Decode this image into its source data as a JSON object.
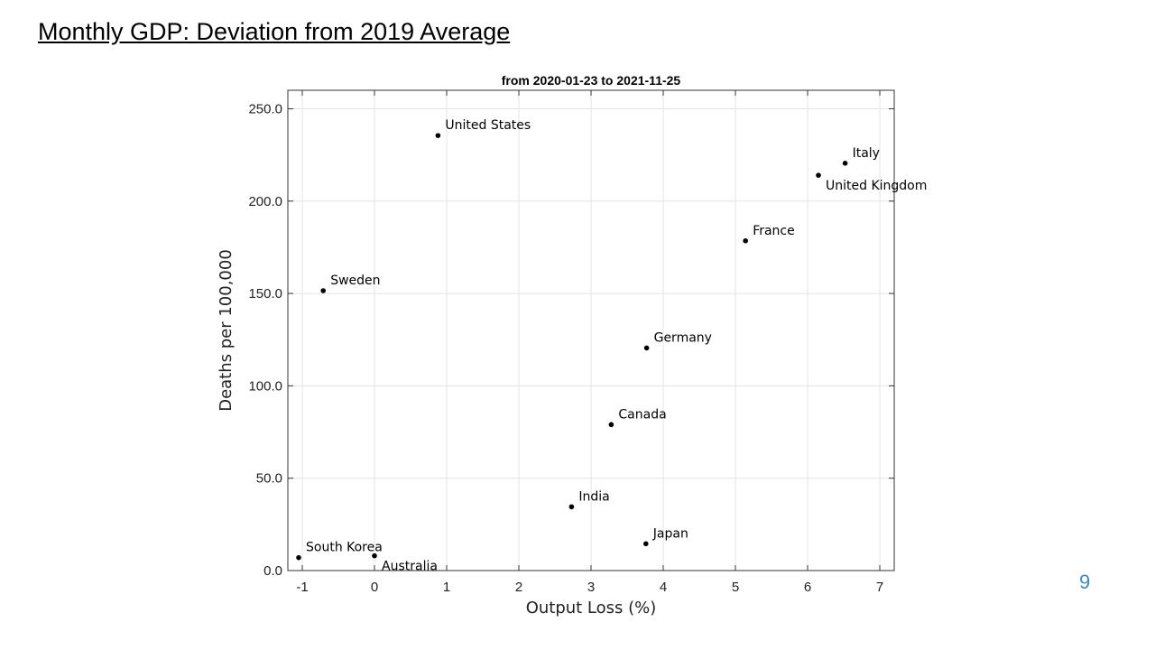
{
  "slide": {
    "title": "Monthly GDP: Deviation from 2019 Average",
    "page_number": "9"
  },
  "chart_data": {
    "type": "scatter",
    "title": "from 2020-01-23 to 2021-11-25",
    "xlabel": "Output Loss (%)",
    "ylabel": "Deaths per 100,000",
    "xlim": [
      -1.2,
      7.2
    ],
    "ylim": [
      0,
      260
    ],
    "grid": true,
    "xticks": [
      -1,
      0,
      1,
      2,
      3,
      4,
      5,
      6,
      7
    ],
    "xtick_labels": [
      "-1",
      "0",
      "1",
      "2",
      "3",
      "4",
      "5",
      "6",
      "7"
    ],
    "yticks": [
      0,
      50,
      100,
      150,
      200,
      250
    ],
    "ytick_labels": [
      "0.0",
      "50.0",
      "100.0",
      "150.0",
      "200.0",
      "250.0"
    ],
    "points": [
      {
        "label": "United States",
        "x": 0.88,
        "y": 235.5,
        "label_pos": "above-right"
      },
      {
        "label": "Italy",
        "x": 6.52,
        "y": 220.5,
        "label_pos": "above-right"
      },
      {
        "label": "United Kingdom",
        "x": 6.15,
        "y": 214.0,
        "label_pos": "below-right"
      },
      {
        "label": "France",
        "x": 5.14,
        "y": 178.5,
        "label_pos": "above-right"
      },
      {
        "label": "Sweden",
        "x": -0.71,
        "y": 151.5,
        "label_pos": "above-right"
      },
      {
        "label": "Germany",
        "x": 3.77,
        "y": 120.5,
        "label_pos": "above-right"
      },
      {
        "label": "Canada",
        "x": 3.28,
        "y": 79.0,
        "label_pos": "above-right"
      },
      {
        "label": "India",
        "x": 2.73,
        "y": 34.5,
        "label_pos": "above-right"
      },
      {
        "label": "Japan",
        "x": 3.76,
        "y": 14.5,
        "label_pos": "above-right"
      },
      {
        "label": "South Korea",
        "x": -1.05,
        "y": 7.0,
        "label_pos": "above-right"
      },
      {
        "label": "Australia",
        "x": 0.0,
        "y": 8.0,
        "label_pos": "below-right"
      }
    ]
  }
}
